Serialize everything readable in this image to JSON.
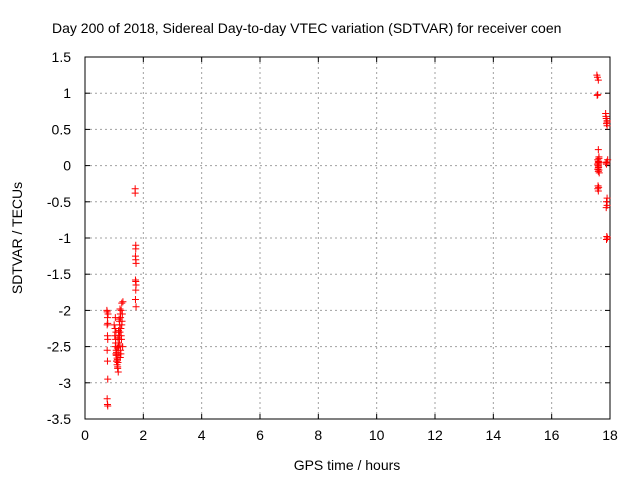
{
  "chart_data": {
    "type": "scatter",
    "title": "Day 200 of 2018, Sidereal Day-to-day VTEC variation (SDTVAR) for receiver coen",
    "xlabel": "GPS time / hours",
    "ylabel": "SDTVAR / TECUs",
    "xlim": [
      0,
      18
    ],
    "ylim": [
      -3.5,
      1.5
    ],
    "xticks": [
      0,
      2,
      4,
      6,
      8,
      10,
      12,
      14,
      16,
      18
    ],
    "yticks": [
      -3.5,
      -3,
      -2.5,
      -2,
      -1.5,
      -1,
      -0.5,
      0,
      0.5,
      1,
      1.5
    ],
    "xtick_labels": [
      "0",
      "2",
      "4",
      "6",
      "8",
      "10",
      "12",
      "14",
      "16",
      "18"
    ],
    "ytick_labels": [
      "-3.5",
      "-3",
      "-2.5",
      "-2",
      "-1.5",
      "-1",
      "-0.5",
      "0",
      "0.5",
      "1",
      "1.5"
    ],
    "grid": true,
    "marker": "+",
    "color": "#ff0000",
    "series": [
      {
        "name": "SDTVAR",
        "x": [
          0.75,
          0.76,
          0.77,
          0.78,
          0.76,
          0.77,
          0.78,
          0.76,
          0.77,
          0.78,
          0.76,
          0.77,
          0.78,
          0.79,
          1.0,
          1.02,
          1.04,
          1.06,
          1.08,
          1.1,
          1.12,
          1.14,
          1.16,
          1.18,
          1.2,
          1.22,
          1.24,
          1.26,
          1.03,
          1.05,
          1.07,
          1.09,
          1.11,
          1.13,
          1.15,
          1.17,
          1.19,
          1.21,
          1.23,
          1.25,
          1.27,
          1.29,
          1.04,
          1.06,
          1.08,
          1.1,
          1.12,
          1.14,
          1.16,
          1.18,
          1.2,
          1.22,
          1.24,
          1.26,
          1.28,
          1.3,
          1.05,
          1.07,
          1.09,
          1.11,
          1.13,
          1.15,
          1.17,
          1.19,
          1.21,
          1.23,
          1.72,
          1.72,
          1.74,
          1.74,
          1.73,
          1.74,
          1.75,
          1.73,
          1.74,
          1.75,
          1.74,
          1.73,
          1.75,
          17.55,
          17.57,
          17.6,
          17.58,
          17.56,
          17.6,
          17.62,
          17.58,
          17.6,
          17.62,
          17.57,
          17.59,
          17.61,
          17.58,
          17.6,
          17.63,
          17.59,
          17.61,
          17.58,
          17.6,
          17.62,
          17.6,
          17.61,
          17.6,
          17.62,
          17.85,
          17.87,
          17.9,
          17.88,
          17.9,
          17.92,
          17.86,
          17.88,
          17.9,
          17.88,
          17.9,
          17.87,
          17.89,
          17.91,
          17.88,
          17.9,
          17.86,
          17.89
        ],
        "y": [
          -2.0,
          -2.02,
          -2.1,
          -2.18,
          -2.2,
          -2.35,
          -2.4,
          -2.55,
          -2.7,
          -2.95,
          -3.22,
          -3.3,
          -3.32,
          -2.05,
          -2.2,
          -2.35,
          -2.5,
          -2.6,
          -2.7,
          -2.75,
          -2.8,
          -2.85,
          -2.6,
          -2.4,
          -2.3,
          -2.1,
          -2.0,
          -1.9,
          -2.25,
          -2.45,
          -2.55,
          -2.62,
          -2.68,
          -2.72,
          -2.5,
          -2.35,
          -2.2,
          -2.05,
          -2.6,
          -2.4,
          -2.15,
          -2.5,
          -2.1,
          -2.3,
          -2.58,
          -2.66,
          -2.78,
          -2.45,
          -2.3,
          -2.15,
          -1.98,
          -2.55,
          -2.35,
          -2.2,
          -2.05,
          -1.88,
          -2.4,
          -2.62,
          -2.7,
          -2.52,
          -2.38,
          -2.28,
          -2.12,
          -2.48,
          -2.65,
          -2.25,
          -0.32,
          -0.38,
          -1.1,
          -1.15,
          -1.25,
          -1.3,
          -1.35,
          -1.58,
          -1.6,
          -1.65,
          -1.72,
          -1.85,
          -1.95,
          1.25,
          1.22,
          1.18,
          0.98,
          0.97,
          0.22,
          0.12,
          0.08,
          0.06,
          0.05,
          0.02,
          0.0,
          -0.02,
          -0.05,
          -0.08,
          -0.1,
          -0.28,
          -0.3,
          -0.32,
          -0.35,
          0.1,
          0.04,
          0.02,
          -0.03,
          -0.06,
          0.72,
          0.65,
          0.6,
          0.58,
          0.55,
          0.08,
          0.04,
          0.02,
          -0.45,
          -0.5,
          -0.55,
          -0.58,
          -0.98,
          -1.0,
          -1.02,
          0.62,
          0.68,
          0.05
        ]
      }
    ]
  }
}
